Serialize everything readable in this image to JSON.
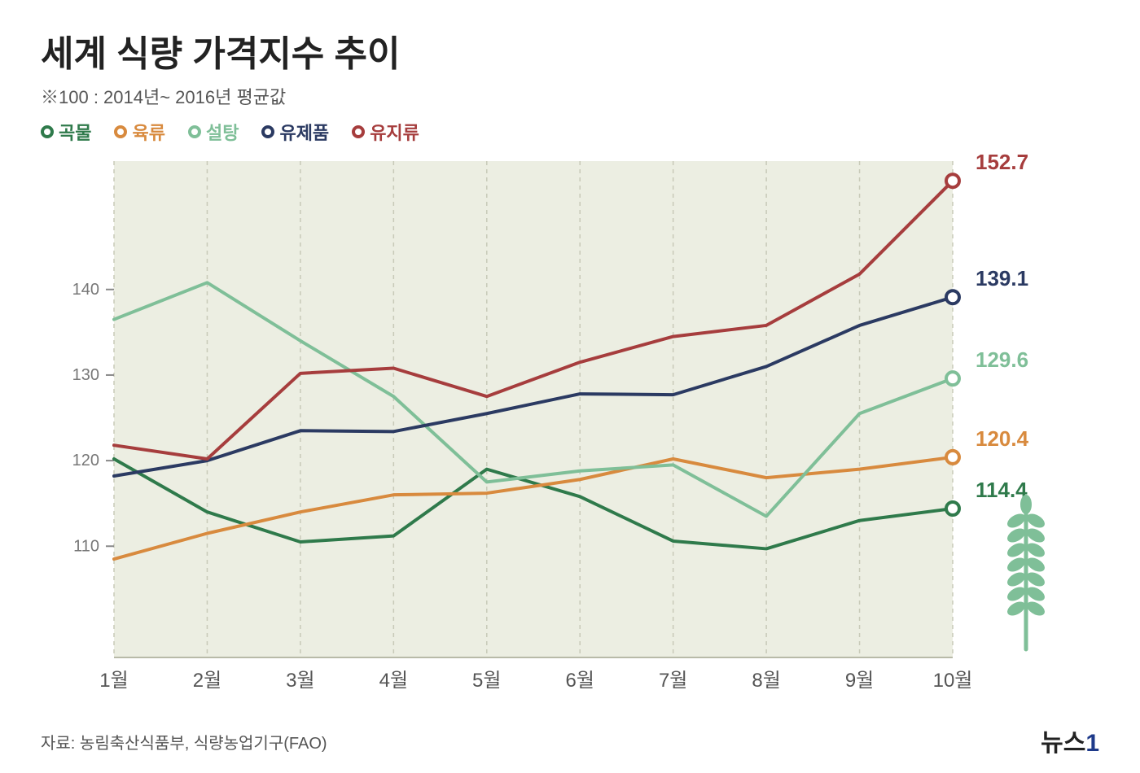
{
  "title": "세계 식량 가격지수 추이",
  "subtitle": "※100 : 2014년~ 2016년 평균값",
  "source": "자료: 농림축산식품부, 식량농업기구(FAO)",
  "brand": {
    "name": "뉴스",
    "num": "1"
  },
  "legend": [
    {
      "label": "곡물",
      "color": "#2f7a4b"
    },
    {
      "label": "육류",
      "color": "#d88a3e"
    },
    {
      "label": "설탕",
      "color": "#7fbf98"
    },
    {
      "label": "유제품",
      "color": "#2b3a62"
    },
    {
      "label": "유지류",
      "color": "#a63d3d"
    }
  ],
  "chart": {
    "type": "line",
    "background_color": "#eceee2",
    "grid_color": "#c8cab8",
    "plot_bottom_color": "#d9ddc9",
    "xlabels": [
      "1월",
      "2월",
      "3월",
      "4월",
      "5월",
      "6월",
      "7월",
      "8월",
      "9월",
      "10월"
    ],
    "ylim": [
      97,
      155
    ],
    "yticks": [
      110,
      120,
      130,
      140
    ],
    "ytick_fontsize": 20,
    "xlabel_fontsize": 24,
    "line_width": 4,
    "series": [
      {
        "name": "곡물",
        "color": "#2f7a4b",
        "data": [
          120.2,
          114.0,
          110.5,
          111.2,
          119.0,
          115.8,
          110.6,
          109.7,
          113.0,
          114.4
        ],
        "end_label": "114.4"
      },
      {
        "name": "육류",
        "color": "#d88a3e",
        "data": [
          108.5,
          111.5,
          114.0,
          116.0,
          116.2,
          117.8,
          120.2,
          118.0,
          119.0,
          120.4
        ],
        "end_label": "120.4"
      },
      {
        "name": "설탕",
        "color": "#7fbf98",
        "data": [
          136.5,
          140.8,
          134.0,
          127.5,
          117.5,
          118.8,
          119.5,
          113.5,
          125.5,
          129.6
        ],
        "end_label": "129.6"
      },
      {
        "name": "유제품",
        "color": "#2b3a62",
        "data": [
          118.2,
          120.0,
          123.5,
          123.4,
          125.5,
          127.8,
          127.7,
          131.0,
          135.8,
          139.1
        ],
        "end_label": "139.1"
      },
      {
        "name": "유지류",
        "color": "#a63d3d",
        "data": [
          121.8,
          120.2,
          130.2,
          130.8,
          127.5,
          131.5,
          134.5,
          135.8,
          141.8,
          152.7
        ],
        "end_label": "152.7"
      }
    ],
    "endlabel_fontsize": 26,
    "endlabel_fontweight": 600,
    "wheat_icon_color": "#7fbf98"
  }
}
